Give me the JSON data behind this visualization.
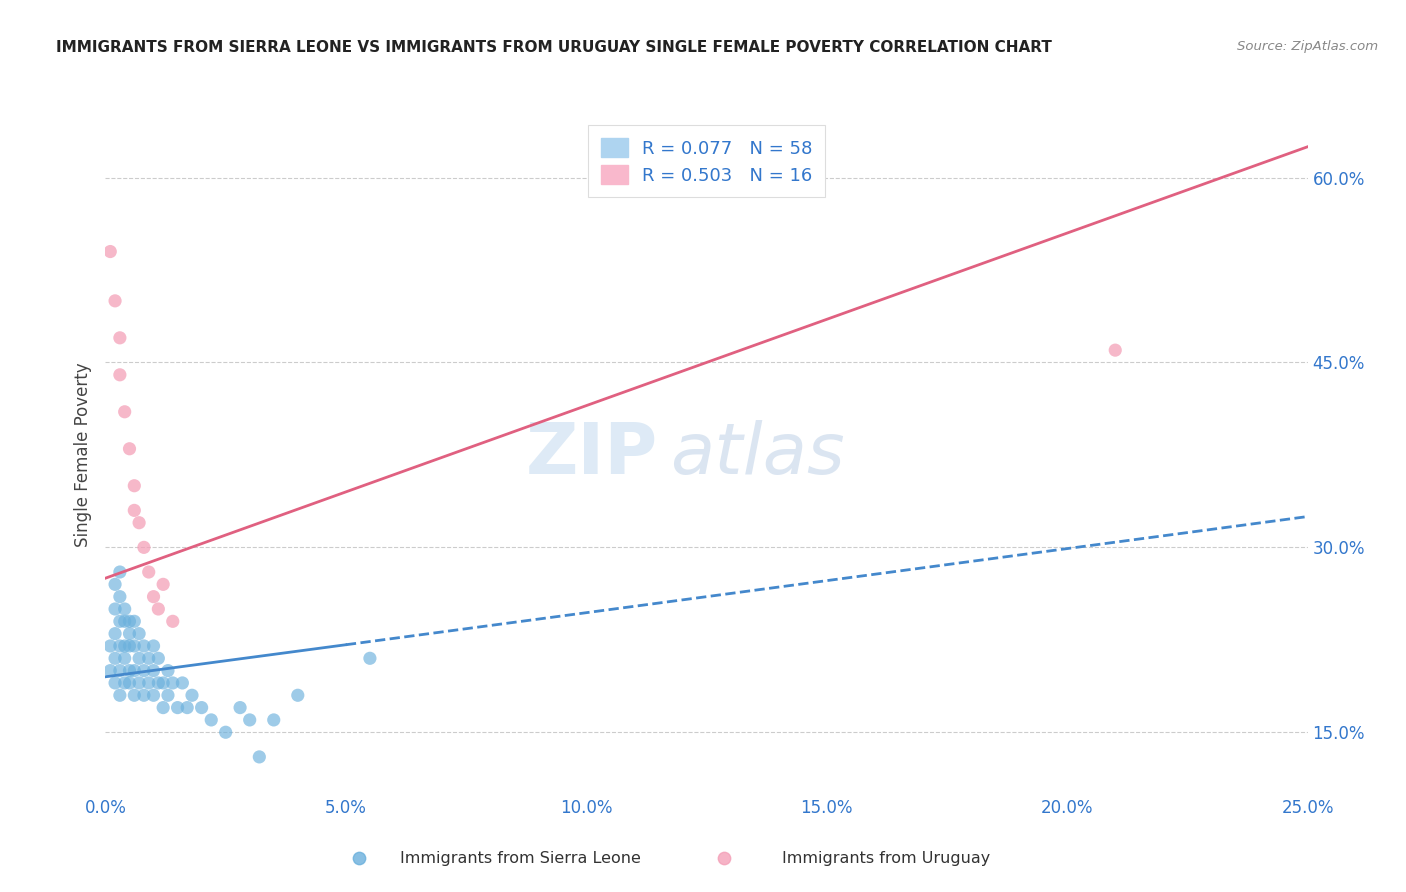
{
  "title": "IMMIGRANTS FROM SIERRA LEONE VS IMMIGRANTS FROM URUGUAY SINGLE FEMALE POVERTY CORRELATION CHART",
  "source": "Source: ZipAtlas.com",
  "ylabel": "Single Female Poverty",
  "xlim": [
    0.0,
    0.25
  ],
  "ylim": [
    0.1,
    0.65
  ],
  "xticks": [
    0.0,
    0.05,
    0.1,
    0.15,
    0.2,
    0.25
  ],
  "xticklabels": [
    "0.0%",
    "5.0%",
    "10.0%",
    "15.0%",
    "20.0%",
    "25.0%"
  ],
  "yticks_right": [
    0.15,
    0.3,
    0.45,
    0.6
  ],
  "ytick_labels_right": [
    "15.0%",
    "30.0%",
    "45.0%",
    "60.0%"
  ],
  "legend1_label": "R = 0.077   N = 58",
  "legend2_label": "R = 0.503   N = 16",
  "watermark_zip": "ZIP",
  "watermark_atlas": "atlas",
  "sierra_leone_color": "#6ab0dc",
  "uruguay_color": "#f4a0b8",
  "sierra_leone_line_color": "#4488cc",
  "uruguay_line_color": "#e06080",
  "background_color": "#ffffff",
  "sierra_leone_x": [
    0.001,
    0.001,
    0.002,
    0.002,
    0.002,
    0.002,
    0.002,
    0.003,
    0.003,
    0.003,
    0.003,
    0.003,
    0.003,
    0.004,
    0.004,
    0.004,
    0.004,
    0.004,
    0.005,
    0.005,
    0.005,
    0.005,
    0.005,
    0.006,
    0.006,
    0.006,
    0.006,
    0.007,
    0.007,
    0.007,
    0.008,
    0.008,
    0.008,
    0.009,
    0.009,
    0.01,
    0.01,
    0.01,
    0.011,
    0.011,
    0.012,
    0.012,
    0.013,
    0.013,
    0.014,
    0.015,
    0.016,
    0.017,
    0.018,
    0.02,
    0.022,
    0.025,
    0.028,
    0.03,
    0.032,
    0.035,
    0.04,
    0.055
  ],
  "sierra_leone_y": [
    0.2,
    0.22,
    0.19,
    0.21,
    0.23,
    0.25,
    0.27,
    0.18,
    0.2,
    0.22,
    0.24,
    0.26,
    0.28,
    0.19,
    0.21,
    0.22,
    0.24,
    0.25,
    0.19,
    0.2,
    0.22,
    0.23,
    0.24,
    0.18,
    0.2,
    0.22,
    0.24,
    0.19,
    0.21,
    0.23,
    0.18,
    0.2,
    0.22,
    0.19,
    0.21,
    0.18,
    0.2,
    0.22,
    0.19,
    0.21,
    0.17,
    0.19,
    0.18,
    0.2,
    0.19,
    0.17,
    0.19,
    0.17,
    0.18,
    0.17,
    0.16,
    0.15,
    0.17,
    0.16,
    0.13,
    0.16,
    0.18,
    0.21
  ],
  "uruguay_x": [
    0.001,
    0.002,
    0.003,
    0.003,
    0.004,
    0.005,
    0.006,
    0.006,
    0.007,
    0.008,
    0.009,
    0.01,
    0.011,
    0.012,
    0.014,
    0.21
  ],
  "uruguay_y": [
    0.54,
    0.5,
    0.47,
    0.44,
    0.41,
    0.38,
    0.35,
    0.33,
    0.32,
    0.3,
    0.28,
    0.26,
    0.25,
    0.27,
    0.24,
    0.46
  ],
  "sl_trend_x0": 0.0,
  "sl_trend_y0": 0.195,
  "sl_trend_x1": 0.25,
  "sl_trend_y1": 0.325,
  "ur_trend_x0": 0.0,
  "ur_trend_y0": 0.275,
  "ur_trend_x1": 0.25,
  "ur_trend_y1": 0.625
}
